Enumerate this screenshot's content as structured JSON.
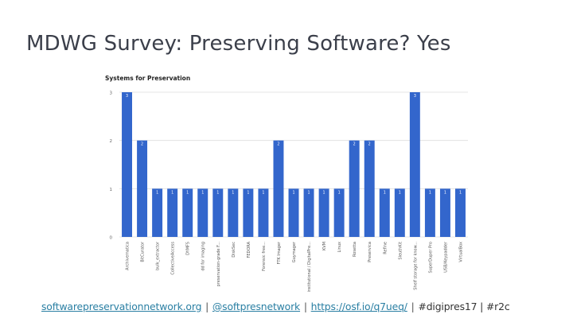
{
  "slide": {
    "title": "MDWG Survey: Preserving Software? Yes"
  },
  "footer": {
    "link1": "softwarepreservationnetwork.org",
    "link2": "@softpresnetwork",
    "link3": "https://osf.io/q7ueq/",
    "text": "#digipres17 | #r2c",
    "separator": "|"
  },
  "chart_data": {
    "type": "bar",
    "title": "Systems for Preservation",
    "xlabel": "",
    "ylabel": "",
    "ylim": [
      0,
      3
    ],
    "yticks": [
      "0",
      "1",
      "2",
      "3"
    ],
    "grid": true,
    "legend": "none",
    "bar_color": "#3366cc",
    "categories": [
      "Archivematica",
      "BitCurator",
      "bulk_extractor",
      "CollectiveAccess",
      "DYMFS",
      "dd for imaging",
      "preservation-grade F...",
      "DiskSec",
      "FEDORA",
      "Forensic free...",
      "FTK Imager",
      "Guymager",
      "institutional / DigitalPre...",
      "KVM",
      "Linux",
      "Rosetta",
      "Preservica",
      "Refine",
      "SleuthKit",
      "Shelf storage for know...",
      "SuperDuper Pro",
      "USB/Keypadder",
      "VirtualBox"
    ],
    "values": [
      3,
      2,
      1,
      1,
      1,
      1,
      1,
      1,
      1,
      1,
      2,
      1,
      1,
      1,
      1,
      2,
      2,
      1,
      1,
      3,
      1,
      1,
      1
    ]
  }
}
